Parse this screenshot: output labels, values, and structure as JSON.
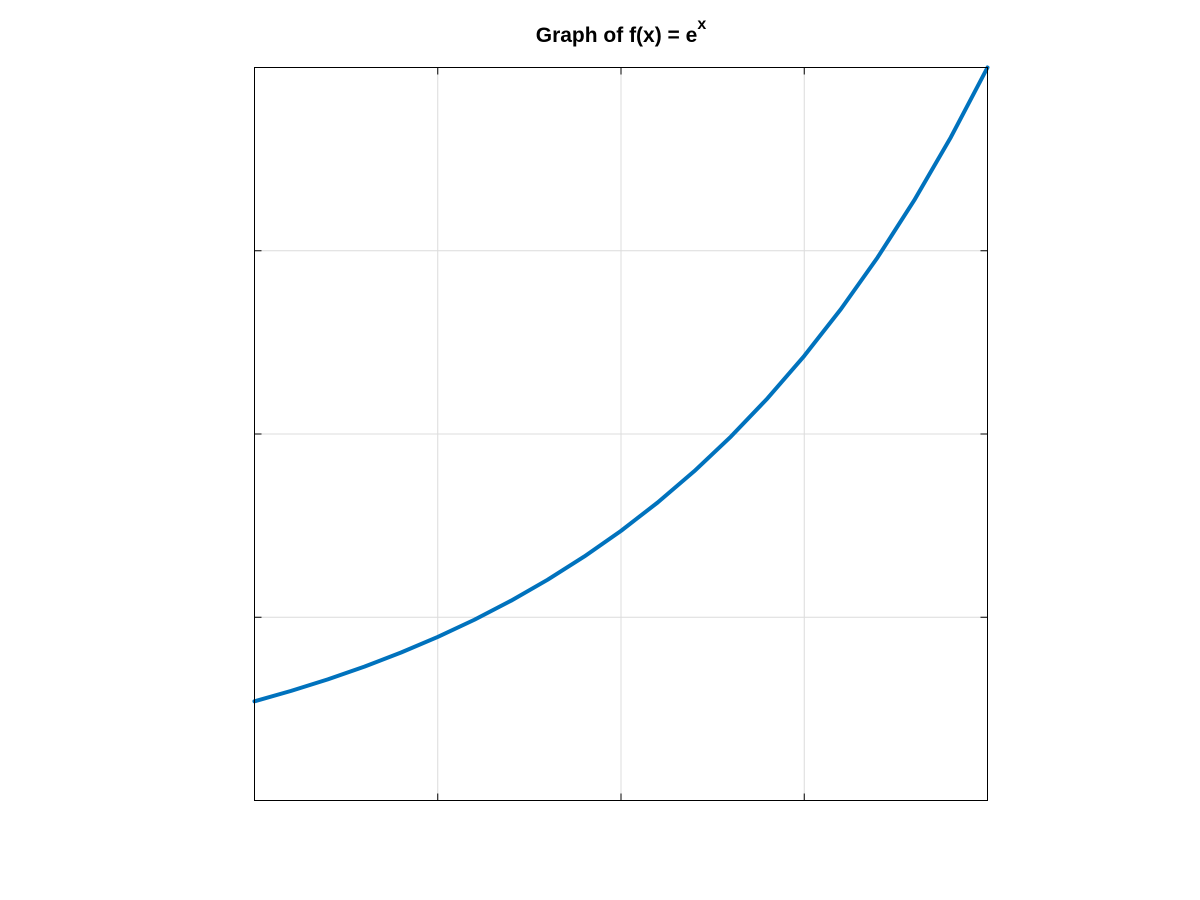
{
  "chart_data": {
    "type": "line",
    "title": {
      "main": "Graph of f(x) = e",
      "superscript": "x"
    },
    "xlabel": "",
    "ylabel": "",
    "xlim": [
      0,
      2
    ],
    "ylim": [
      0,
      7.389
    ],
    "x_ticks": [
      0,
      0.5,
      1,
      1.5,
      2
    ],
    "y_ticks": [
      0,
      1.8472,
      3.6945,
      5.5417,
      7.389
    ],
    "tick_labels_shown": false,
    "grid": true,
    "series": [
      {
        "function": "exp(x)",
        "color": "#0072bd",
        "x": [
          0,
          0.1,
          0.2,
          0.3,
          0.4,
          0.5,
          0.6,
          0.7,
          0.8,
          0.9,
          1.0,
          1.1,
          1.2,
          1.3,
          1.4,
          1.5,
          1.6,
          1.7,
          1.8,
          1.9,
          2.0
        ],
        "y": [
          1.0,
          1.105,
          1.221,
          1.35,
          1.492,
          1.649,
          1.822,
          2.014,
          2.226,
          2.46,
          2.718,
          3.004,
          3.32,
          3.669,
          4.055,
          4.482,
          4.953,
          5.474,
          6.05,
          6.686,
          7.389
        ]
      }
    ],
    "colors": {
      "axis": "#000000",
      "grid": "#dcdcdc",
      "background": "#ffffff"
    }
  }
}
